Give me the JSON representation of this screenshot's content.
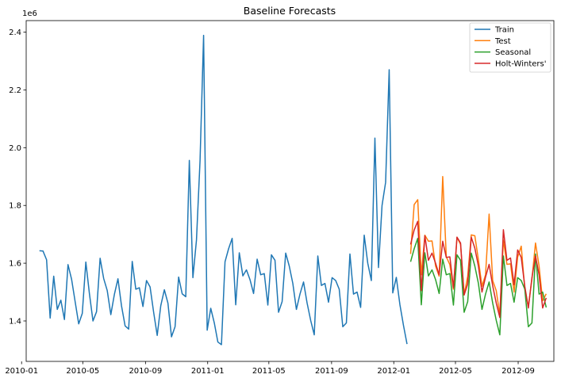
{
  "chart_data": {
    "type": "line",
    "title": "Baseline Forecasts",
    "xlabel": "",
    "ylabel": "",
    "y_scale_label": "1e6",
    "xlim": [
      "2010-01-10",
      "2012-11-10"
    ],
    "ylim": [
      1.26,
      2.44
    ],
    "x_ticks": [
      "2010-01",
      "2010-05",
      "2010-09",
      "2011-01",
      "2011-05",
      "2011-09",
      "2012-01",
      "2012-05",
      "2012-09"
    ],
    "y_ticks": [
      1.4,
      1.6,
      1.8,
      2.0,
      2.2,
      2.4
    ],
    "legend_position": "top-right",
    "grid": false,
    "series": [
      {
        "name": "Train",
        "color": "#1f77b4",
        "points": [
          [
            "2010-02-05",
            1.643
          ],
          [
            "2010-02-12",
            1.642
          ],
          [
            "2010-02-19",
            1.612
          ],
          [
            "2010-02-26",
            1.41
          ],
          [
            "2010-03-05",
            1.555
          ],
          [
            "2010-03-12",
            1.44
          ],
          [
            "2010-03-19",
            1.472
          ],
          [
            "2010-03-26",
            1.405
          ],
          [
            "2010-04-02",
            1.595
          ],
          [
            "2010-04-09",
            1.545
          ],
          [
            "2010-04-16",
            1.467
          ],
          [
            "2010-04-23",
            1.39
          ],
          [
            "2010-04-30",
            1.426
          ],
          [
            "2010-05-07",
            1.604
          ],
          [
            "2010-05-14",
            1.495
          ],
          [
            "2010-05-21",
            1.4
          ],
          [
            "2010-05-28",
            1.432
          ],
          [
            "2010-06-04",
            1.617
          ],
          [
            "2010-06-11",
            1.547
          ],
          [
            "2010-06-18",
            1.505
          ],
          [
            "2010-06-25",
            1.422
          ],
          [
            "2010-07-02",
            1.492
          ],
          [
            "2010-07-09",
            1.546
          ],
          [
            "2010-07-16",
            1.452
          ],
          [
            "2010-07-23",
            1.383
          ],
          [
            "2010-07-30",
            1.372
          ],
          [
            "2010-08-06",
            1.606
          ],
          [
            "2010-08-13",
            1.51
          ],
          [
            "2010-08-20",
            1.515
          ],
          [
            "2010-08-27",
            1.45
          ],
          [
            "2010-09-03",
            1.54
          ],
          [
            "2010-09-10",
            1.518
          ],
          [
            "2010-09-17",
            1.43
          ],
          [
            "2010-09-24",
            1.35
          ],
          [
            "2010-10-01",
            1.453
          ],
          [
            "2010-10-08",
            1.508
          ],
          [
            "2010-10-15",
            1.462
          ],
          [
            "2010-10-22",
            1.345
          ],
          [
            "2010-10-29",
            1.38
          ],
          [
            "2010-11-05",
            1.552
          ],
          [
            "2010-11-12",
            1.494
          ],
          [
            "2010-11-19",
            1.484
          ],
          [
            "2010-11-26",
            1.956
          ],
          [
            "2010-12-03",
            1.55
          ],
          [
            "2010-12-10",
            1.68
          ],
          [
            "2010-12-17",
            1.955
          ],
          [
            "2010-12-24",
            2.389
          ],
          [
            "2010-12-31",
            1.368
          ],
          [
            "2011-01-07",
            1.444
          ],
          [
            "2011-01-14",
            1.393
          ],
          [
            "2011-01-21",
            1.327
          ],
          [
            "2011-01-28",
            1.318
          ],
          [
            "2011-02-04",
            1.605
          ],
          [
            "2011-02-11",
            1.65
          ],
          [
            "2011-02-18",
            1.686
          ],
          [
            "2011-02-25",
            1.456
          ],
          [
            "2011-03-04",
            1.636
          ],
          [
            "2011-03-11",
            1.556
          ],
          [
            "2011-03-18",
            1.577
          ],
          [
            "2011-03-25",
            1.543
          ],
          [
            "2011-04-01",
            1.495
          ],
          [
            "2011-04-08",
            1.614
          ],
          [
            "2011-04-15",
            1.56
          ],
          [
            "2011-04-22",
            1.564
          ],
          [
            "2011-04-29",
            1.455
          ],
          [
            "2011-05-06",
            1.629
          ],
          [
            "2011-05-13",
            1.61
          ],
          [
            "2011-05-20",
            1.43
          ],
          [
            "2011-05-27",
            1.467
          ],
          [
            "2011-06-03",
            1.635
          ],
          [
            "2011-06-10",
            1.59
          ],
          [
            "2011-06-17",
            1.53
          ],
          [
            "2011-06-24",
            1.44
          ],
          [
            "2011-07-01",
            1.493
          ],
          [
            "2011-07-08",
            1.535
          ],
          [
            "2011-07-15",
            1.462
          ],
          [
            "2011-07-22",
            1.402
          ],
          [
            "2011-07-29",
            1.352
          ],
          [
            "2011-08-05",
            1.625
          ],
          [
            "2011-08-12",
            1.523
          ],
          [
            "2011-08-19",
            1.53
          ],
          [
            "2011-08-26",
            1.465
          ],
          [
            "2011-09-02",
            1.55
          ],
          [
            "2011-09-09",
            1.54
          ],
          [
            "2011-09-16",
            1.51
          ],
          [
            "2011-09-23",
            1.38
          ],
          [
            "2011-09-30",
            1.393
          ],
          [
            "2011-10-07",
            1.632
          ],
          [
            "2011-10-14",
            1.493
          ],
          [
            "2011-10-21",
            1.5
          ],
          [
            "2011-10-28",
            1.447
          ],
          [
            "2011-11-04",
            1.697
          ],
          [
            "2011-11-11",
            1.6
          ],
          [
            "2011-11-18",
            1.54
          ],
          [
            "2011-11-25",
            2.033
          ],
          [
            "2011-12-02",
            1.585
          ],
          [
            "2011-12-09",
            1.8
          ],
          [
            "2011-12-16",
            1.88
          ],
          [
            "2011-12-23",
            2.27
          ],
          [
            "2011-12-30",
            1.497
          ],
          [
            "2012-01-06",
            1.551
          ],
          [
            "2012-01-13",
            1.457
          ],
          [
            "2012-01-20",
            1.385
          ],
          [
            "2012-01-27",
            1.32
          ]
        ]
      },
      {
        "name": "Test",
        "color": "#ff7f0e",
        "points": [
          [
            "2012-02-03",
            1.632
          ],
          [
            "2012-02-10",
            1.803
          ],
          [
            "2012-02-17",
            1.82
          ],
          [
            "2012-02-24",
            1.56
          ],
          [
            "2012-03-02",
            1.697
          ],
          [
            "2012-03-09",
            1.676
          ],
          [
            "2012-03-16",
            1.677
          ],
          [
            "2012-03-23",
            1.59
          ],
          [
            "2012-03-30",
            1.555
          ],
          [
            "2012-04-06",
            1.9
          ],
          [
            "2012-04-13",
            1.622
          ],
          [
            "2012-04-20",
            1.595
          ],
          [
            "2012-04-27",
            1.51
          ],
          [
            "2012-05-04",
            1.69
          ],
          [
            "2012-05-11",
            1.665
          ],
          [
            "2012-05-18",
            1.49
          ],
          [
            "2012-05-25",
            1.555
          ],
          [
            "2012-06-01",
            1.698
          ],
          [
            "2012-06-08",
            1.695
          ],
          [
            "2012-06-15",
            1.612
          ],
          [
            "2012-06-22",
            1.52
          ],
          [
            "2012-06-29",
            1.56
          ],
          [
            "2012-07-06",
            1.77
          ],
          [
            "2012-07-13",
            1.54
          ],
          [
            "2012-07-20",
            1.505
          ],
          [
            "2012-07-27",
            1.42
          ],
          [
            "2012-08-03",
            1.68
          ],
          [
            "2012-08-10",
            1.596
          ],
          [
            "2012-08-17",
            1.598
          ],
          [
            "2012-08-24",
            1.5
          ],
          [
            "2012-08-31",
            1.621
          ],
          [
            "2012-09-07",
            1.659
          ],
          [
            "2012-09-14",
            1.51
          ],
          [
            "2012-09-21",
            1.45
          ],
          [
            "2012-09-28",
            1.545
          ],
          [
            "2012-10-05",
            1.67
          ],
          [
            "2012-10-12",
            1.59
          ],
          [
            "2012-10-19",
            1.47
          ],
          [
            "2012-10-26",
            1.494
          ]
        ]
      },
      {
        "name": "Seasonal",
        "color": "#2ca02c",
        "points": [
          [
            "2012-02-03",
            1.605
          ],
          [
            "2012-02-10",
            1.65
          ],
          [
            "2012-02-17",
            1.686
          ],
          [
            "2012-02-24",
            1.456
          ],
          [
            "2012-03-02",
            1.636
          ],
          [
            "2012-03-09",
            1.556
          ],
          [
            "2012-03-16",
            1.577
          ],
          [
            "2012-03-23",
            1.543
          ],
          [
            "2012-03-30",
            1.495
          ],
          [
            "2012-04-06",
            1.614
          ],
          [
            "2012-04-13",
            1.56
          ],
          [
            "2012-04-20",
            1.564
          ],
          [
            "2012-04-27",
            1.455
          ],
          [
            "2012-05-04",
            1.629
          ],
          [
            "2012-05-11",
            1.61
          ],
          [
            "2012-05-18",
            1.43
          ],
          [
            "2012-05-25",
            1.467
          ],
          [
            "2012-06-01",
            1.635
          ],
          [
            "2012-06-08",
            1.59
          ],
          [
            "2012-06-15",
            1.53
          ],
          [
            "2012-06-22",
            1.44
          ],
          [
            "2012-06-29",
            1.493
          ],
          [
            "2012-07-06",
            1.535
          ],
          [
            "2012-07-13",
            1.462
          ],
          [
            "2012-07-20",
            1.402
          ],
          [
            "2012-07-27",
            1.352
          ],
          [
            "2012-08-03",
            1.625
          ],
          [
            "2012-08-10",
            1.523
          ],
          [
            "2012-08-17",
            1.53
          ],
          [
            "2012-08-24",
            1.465
          ],
          [
            "2012-08-31",
            1.55
          ],
          [
            "2012-09-07",
            1.54
          ],
          [
            "2012-09-14",
            1.51
          ],
          [
            "2012-09-21",
            1.38
          ],
          [
            "2012-09-28",
            1.393
          ],
          [
            "2012-10-05",
            1.632
          ],
          [
            "2012-10-12",
            1.493
          ],
          [
            "2012-10-19",
            1.5
          ],
          [
            "2012-10-26",
            1.447
          ]
        ]
      },
      {
        "name": "Holt-Winters'",
        "color": "#d62728",
        "points": [
          [
            "2012-02-03",
            1.665
          ],
          [
            "2012-02-10",
            1.715
          ],
          [
            "2012-02-17",
            1.745
          ],
          [
            "2012-02-24",
            1.505
          ],
          [
            "2012-03-02",
            1.695
          ],
          [
            "2012-03-09",
            1.61
          ],
          [
            "2012-03-16",
            1.635
          ],
          [
            "2012-03-23",
            1.6
          ],
          [
            "2012-03-30",
            1.56
          ],
          [
            "2012-04-06",
            1.676
          ],
          [
            "2012-04-13",
            1.62
          ],
          [
            "2012-04-20",
            1.622
          ],
          [
            "2012-04-27",
            1.515
          ],
          [
            "2012-05-04",
            1.69
          ],
          [
            "2012-05-11",
            1.67
          ],
          [
            "2012-05-18",
            1.49
          ],
          [
            "2012-05-25",
            1.528
          ],
          [
            "2012-06-01",
            1.69
          ],
          [
            "2012-06-08",
            1.652
          ],
          [
            "2012-06-15",
            1.59
          ],
          [
            "2012-06-22",
            1.5
          ],
          [
            "2012-06-29",
            1.552
          ],
          [
            "2012-07-06",
            1.596
          ],
          [
            "2012-07-13",
            1.522
          ],
          [
            "2012-07-20",
            1.462
          ],
          [
            "2012-07-27",
            1.412
          ],
          [
            "2012-08-03",
            1.716
          ],
          [
            "2012-08-10",
            1.61
          ],
          [
            "2012-08-17",
            1.618
          ],
          [
            "2012-08-24",
            1.525
          ],
          [
            "2012-08-31",
            1.646
          ],
          [
            "2012-09-07",
            1.62
          ],
          [
            "2012-09-14",
            1.52
          ],
          [
            "2012-09-21",
            1.445
          ],
          [
            "2012-09-28",
            1.55
          ],
          [
            "2012-10-05",
            1.625
          ],
          [
            "2012-10-12",
            1.56
          ],
          [
            "2012-10-19",
            1.445
          ],
          [
            "2012-10-26",
            1.48
          ]
        ]
      }
    ]
  }
}
